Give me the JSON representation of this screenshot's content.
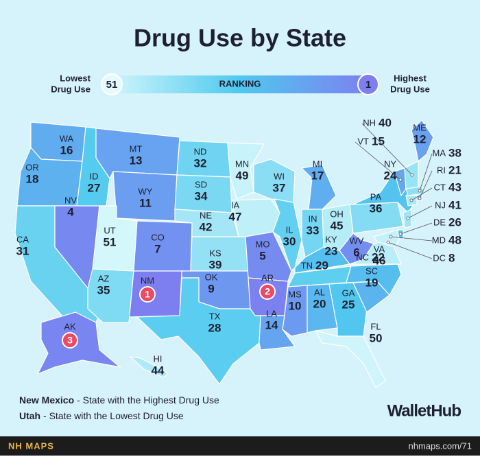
{
  "title": "Drug Use by State",
  "legend": {
    "low_label": [
      "Lowest",
      "Drug Use"
    ],
    "high_label": [
      "Highest",
      "Drug Use"
    ],
    "left_rank": 51,
    "right_rank": 1,
    "center": "RANKING"
  },
  "color_scale": [
    "#7d7ff0",
    "#4fc9ef",
    "#d4f7fb"
  ],
  "states": [
    {
      "abbr": "WA",
      "rank": 16
    },
    {
      "abbr": "OR",
      "rank": 18
    },
    {
      "abbr": "CA",
      "rank": 31
    },
    {
      "abbr": "NV",
      "rank": 4
    },
    {
      "abbr": "ID",
      "rank": 27
    },
    {
      "abbr": "MT",
      "rank": 13
    },
    {
      "abbr": "WY",
      "rank": 11
    },
    {
      "abbr": "UT",
      "rank": 51
    },
    {
      "abbr": "AZ",
      "rank": 35
    },
    {
      "abbr": "CO",
      "rank": 7
    },
    {
      "abbr": "NM",
      "rank": 1
    },
    {
      "abbr": "ND",
      "rank": 32
    },
    {
      "abbr": "SD",
      "rank": 34
    },
    {
      "abbr": "NE",
      "rank": 42
    },
    {
      "abbr": "KS",
      "rank": 39
    },
    {
      "abbr": "OK",
      "rank": 9
    },
    {
      "abbr": "TX",
      "rank": 28
    },
    {
      "abbr": "MN",
      "rank": 49
    },
    {
      "abbr": "IA",
      "rank": 47
    },
    {
      "abbr": "MO",
      "rank": 5
    },
    {
      "abbr": "AR",
      "rank": 2
    },
    {
      "abbr": "LA",
      "rank": 14
    },
    {
      "abbr": "WI",
      "rank": 37
    },
    {
      "abbr": "IL",
      "rank": 30
    },
    {
      "abbr": "MI",
      "rank": 17
    },
    {
      "abbr": "IN",
      "rank": 33
    },
    {
      "abbr": "OH",
      "rank": 45
    },
    {
      "abbr": "KY",
      "rank": 23
    },
    {
      "abbr": "TN",
      "rank": 29
    },
    {
      "abbr": "MS",
      "rank": 10
    },
    {
      "abbr": "AL",
      "rank": 20
    },
    {
      "abbr": "GA",
      "rank": 25
    },
    {
      "abbr": "FL",
      "rank": 50
    },
    {
      "abbr": "SC",
      "rank": 19
    },
    {
      "abbr": "NC",
      "rank": 22
    },
    {
      "abbr": "VA",
      "rank": 46
    },
    {
      "abbr": "WV",
      "rank": 6
    },
    {
      "abbr": "PA",
      "rank": 36
    },
    {
      "abbr": "NY",
      "rank": 24
    },
    {
      "abbr": "ME",
      "rank": 12
    },
    {
      "abbr": "VT",
      "rank": 15
    },
    {
      "abbr": "NH",
      "rank": 40
    },
    {
      "abbr": "MA",
      "rank": 38
    },
    {
      "abbr": "RI",
      "rank": 21
    },
    {
      "abbr": "CT",
      "rank": 43
    },
    {
      "abbr": "NJ",
      "rank": 41
    },
    {
      "abbr": "DE",
      "rank": 26
    },
    {
      "abbr": "MD",
      "rank": 48
    },
    {
      "abbr": "DC",
      "rank": 8
    },
    {
      "abbr": "AK",
      "rank": 3
    },
    {
      "abbr": "HI",
      "rank": 44
    }
  ],
  "notes": [
    {
      "state": "New Mexico",
      "text": " - State with the Highest Drug Use"
    },
    {
      "state": "Utah",
      "text": " - State with the Lowest Drug Use"
    }
  ],
  "brand": "WalletHub",
  "footer": {
    "left": "NH MAPS",
    "right": "nhmaps.com/71"
  }
}
